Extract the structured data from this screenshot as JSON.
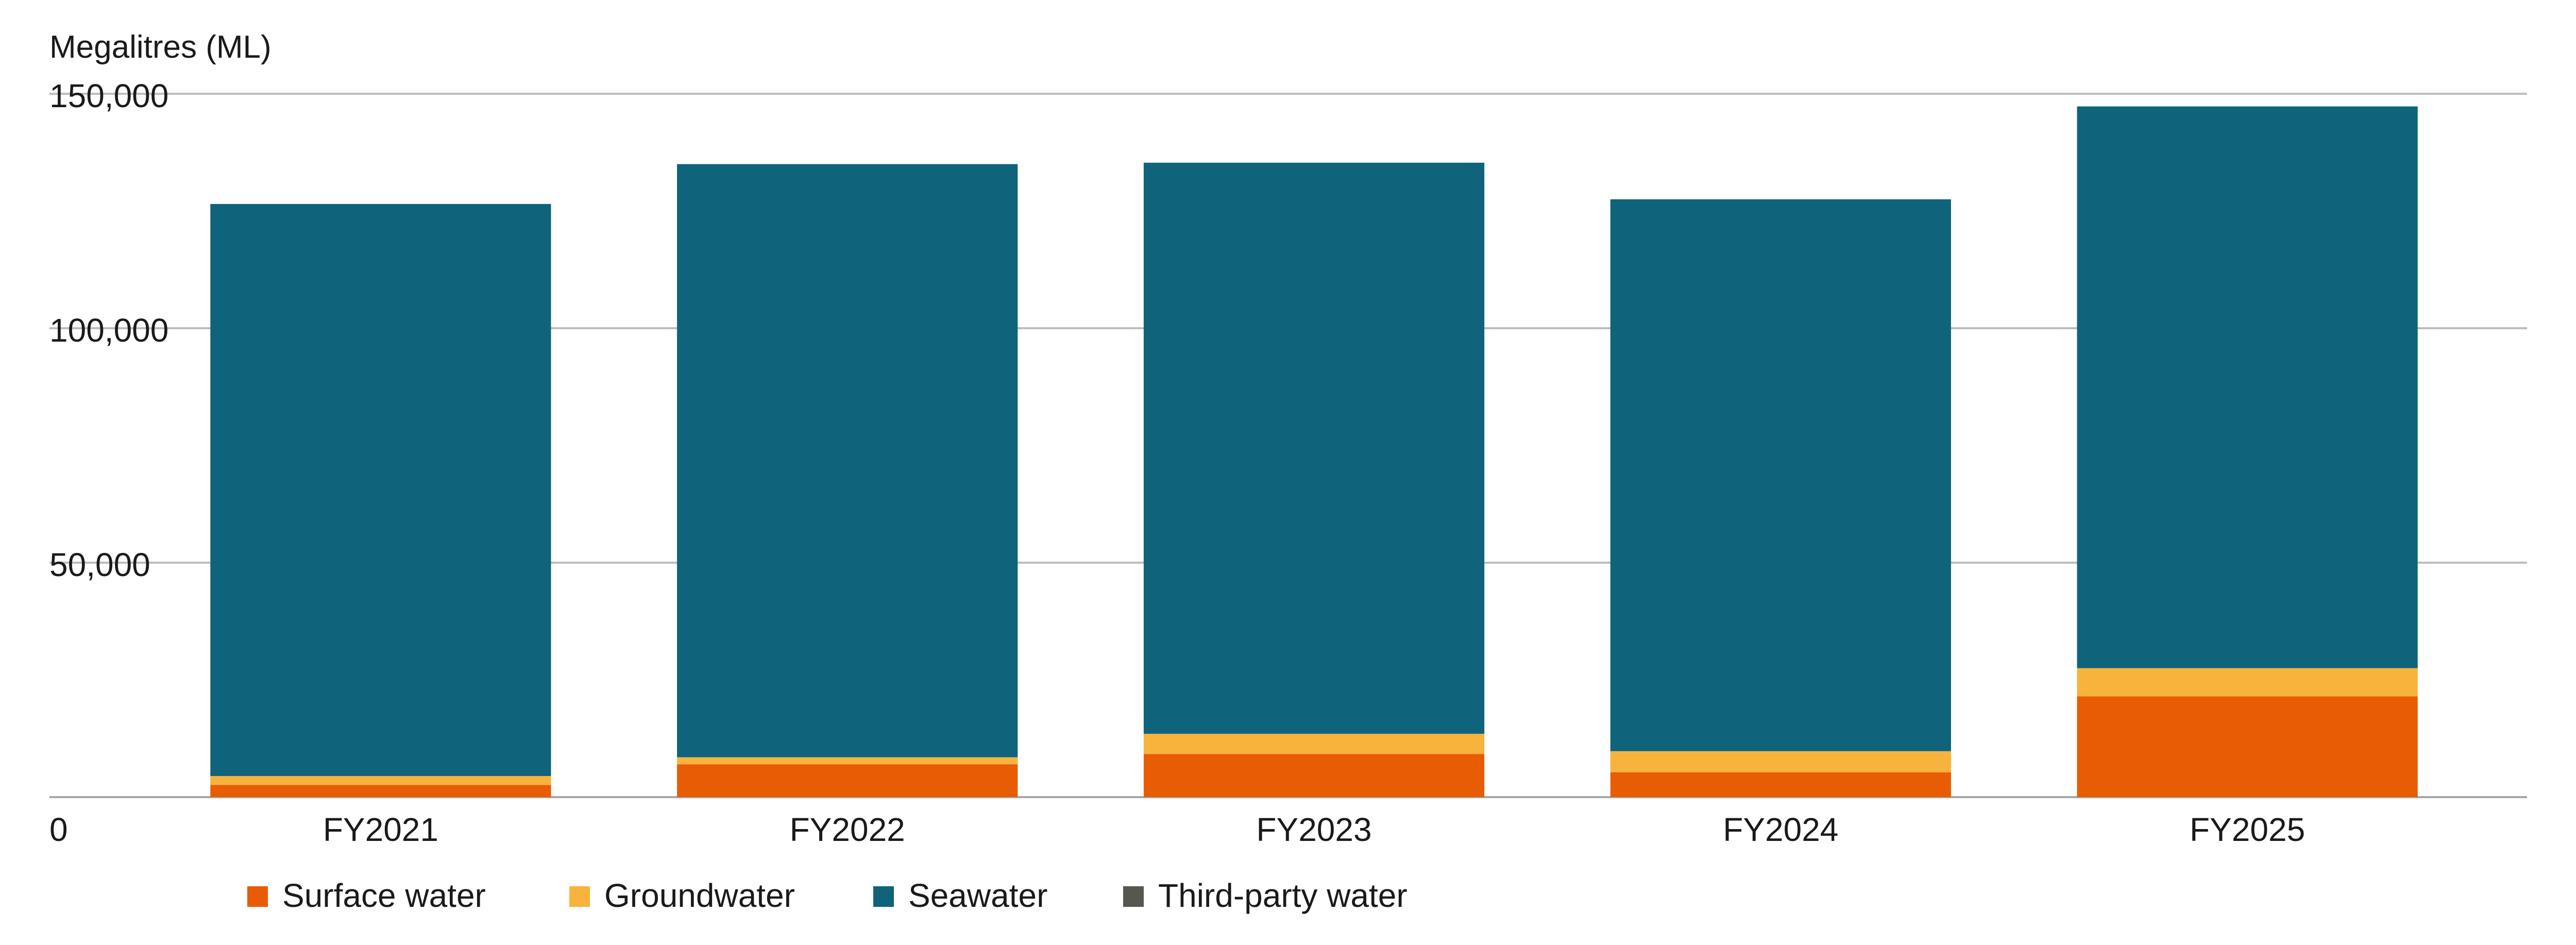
{
  "chart_data": {
    "type": "bar",
    "stacked": true,
    "ylabel": "Megalitres (ML)",
    "ylim": [
      0,
      150000
    ],
    "yticks": [
      0,
      50000,
      100000,
      150000
    ],
    "ytick_labels": [
      "0",
      "50,000",
      "100,000",
      "150,000"
    ],
    "categories": [
      "FY2021",
      "FY2022",
      "FY2023",
      "FY2024",
      "FY2025"
    ],
    "grid": true,
    "legend_position": "bottom-left",
    "series": [
      {
        "name": "Surface water",
        "color": "#e85d04",
        "values": [
          2600,
          7000,
          9200,
          5300,
          21500
        ]
      },
      {
        "name": "Groundwater",
        "color": "#f8b33c",
        "values": [
          1900,
          1500,
          4300,
          4500,
          6000
        ]
      },
      {
        "name": "Seawater",
        "color": "#0f637b",
        "values": [
          122000,
          126500,
          121800,
          117700,
          119800
        ]
      },
      {
        "name": "Third-party water",
        "color": "#575750",
        "values": [
          0,
          0,
          0,
          0,
          0
        ]
      }
    ]
  }
}
